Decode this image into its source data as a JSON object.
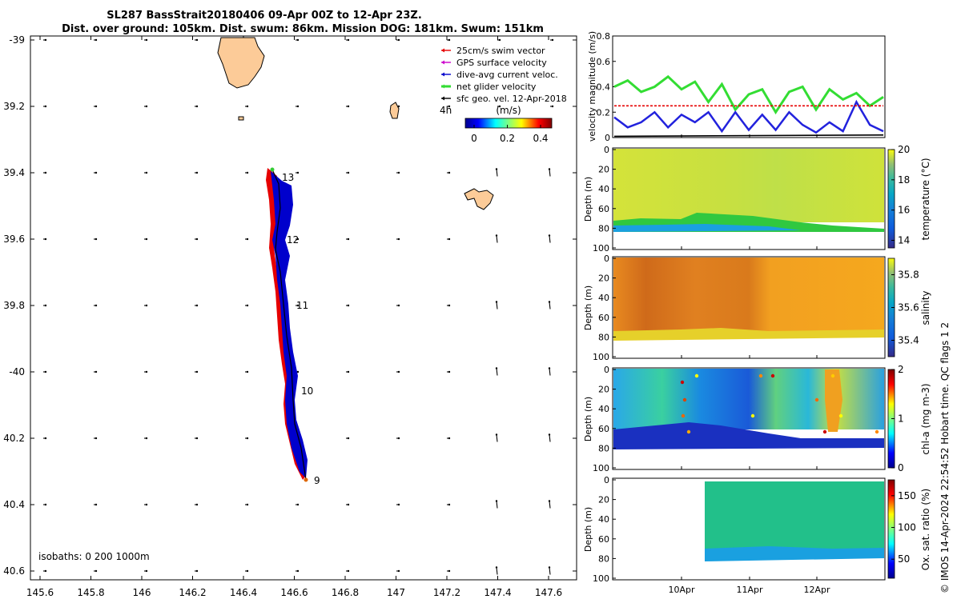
{
  "title_line1": "SL287 BassStrait20180406 09-Apr 00Z to 12-Apr 23Z.",
  "title_line2": "Dist. over ground: 105km. Dist. swum: 86km. Mission DOG: 181km. Swum: 151km",
  "side_caption": "© IMOS 14-Apr-2024 22:54:52 Hobart time. QC flags 1  2",
  "map": {
    "lon_ticks": [
      "145.6",
      "145.8",
      "146",
      "146.2",
      "146.4",
      "146.6",
      "146.8",
      "147",
      "147.2",
      "147.4",
      "147.6"
    ],
    "lat_ticks": [
      "-39",
      "39.2",
      "39.4",
      "39.6",
      "39.8",
      "-40",
      "40.2",
      "40.4",
      "40.6"
    ],
    "day_labels": [
      "13",
      "12",
      "11",
      "10",
      "9"
    ],
    "legend_items": [
      "25cm/s swim vector",
      "GPS surface velocity",
      "dive-avg current veloc.",
      "net glider velocity",
      "sfc geo. vel. 12-Apr-2018"
    ],
    "legend_colors": [
      "#e60000",
      "#cc00cc",
      "#0000cc",
      "#33dd33",
      "#000000"
    ],
    "legend_time": "4h",
    "colorbar_label": "(m/s)",
    "colorbar_ticks": [
      "0",
      "0.2",
      "0.4"
    ],
    "isobaths_label": "isobaths: 0   200  1000m"
  },
  "chart_data": [
    {
      "type": "line",
      "ylabel": "velocity magnitude (m/s)",
      "ylim": [
        0,
        0.8
      ],
      "yticks": [
        "0",
        "0.2",
        "0.4",
        "0.6",
        "0.8"
      ],
      "series": [
        {
          "color": "#33dd33",
          "x": [
            0,
            0.2,
            0.4,
            0.6,
            0.8,
            1.0,
            1.2,
            1.4,
            1.6,
            1.8,
            2.0,
            2.2,
            2.4,
            2.6,
            2.8,
            3.0,
            3.2,
            3.4,
            3.6,
            3.8,
            4.0
          ],
          "values": [
            0.4,
            0.45,
            0.36,
            0.4,
            0.48,
            0.38,
            0.44,
            0.28,
            0.42,
            0.22,
            0.34,
            0.38,
            0.2,
            0.36,
            0.4,
            0.22,
            0.38,
            0.3,
            0.35,
            0.25,
            0.32
          ]
        },
        {
          "color": "#2222dd",
          "x": [
            0,
            0.2,
            0.4,
            0.6,
            0.8,
            1.0,
            1.2,
            1.4,
            1.6,
            1.8,
            2.0,
            2.2,
            2.4,
            2.6,
            2.8,
            3.0,
            3.2,
            3.4,
            3.6,
            3.8,
            4.0
          ],
          "values": [
            0.16,
            0.08,
            0.12,
            0.2,
            0.08,
            0.18,
            0.12,
            0.2,
            0.05,
            0.2,
            0.06,
            0.18,
            0.06,
            0.2,
            0.1,
            0.04,
            0.12,
            0.05,
            0.28,
            0.1,
            0.05
          ]
        },
        {
          "color": "#e60000",
          "x": [
            0,
            4.0
          ],
          "values": [
            0.25,
            0.25
          ]
        },
        {
          "color": "#000000",
          "x": [
            0,
            4.0
          ],
          "values": [
            0.01,
            0.02
          ]
        }
      ]
    },
    {
      "type": "heatmap",
      "ylabel": "Depth (m)",
      "yticks": [
        "0",
        "20",
        "40",
        "60",
        "80",
        "100"
      ],
      "colorbar_label": "temperature (°C)",
      "colorbar_ticks": [
        "14",
        "16",
        "18",
        "20"
      ]
    },
    {
      "type": "heatmap",
      "ylabel": "Depth (m)",
      "yticks": [
        "0",
        "20",
        "40",
        "60",
        "80",
        "100"
      ],
      "colorbar_label": "salinity",
      "colorbar_ticks": [
        "35.4",
        "35.6",
        "35.8"
      ]
    },
    {
      "type": "heatmap",
      "ylabel": "Depth (m)",
      "yticks": [
        "0",
        "20",
        "40",
        "60",
        "80",
        "100"
      ],
      "colorbar_label": "chl-a (mg m-3)",
      "colorbar_ticks": [
        "0",
        "1",
        "2"
      ]
    },
    {
      "type": "heatmap",
      "ylabel": "Depth (m)",
      "yticks": [
        "0",
        "20",
        "40",
        "60",
        "80",
        "100"
      ],
      "colorbar_label": "Ox. sat. ratio (%)",
      "colorbar_ticks": [
        "50",
        "100",
        "150"
      ],
      "xticks": [
        "10Apr",
        "11Apr",
        "12Apr"
      ]
    }
  ]
}
